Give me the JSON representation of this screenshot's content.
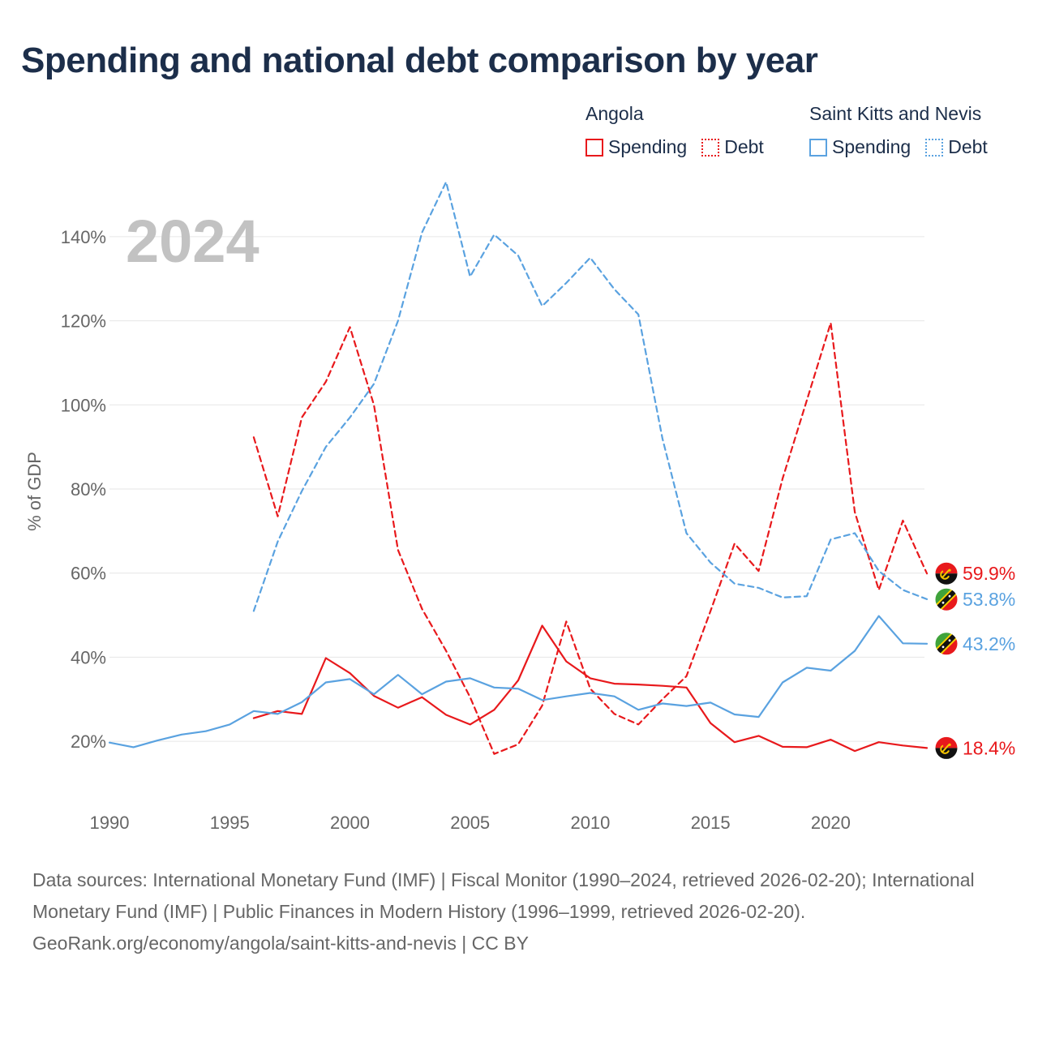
{
  "title": "Spending and national debt comparison by year",
  "legend": {
    "groups": [
      {
        "country": "Angola",
        "color": "#e8191c",
        "spending_label": "Spending",
        "debt_label": "Debt"
      },
      {
        "country": "Saint Kitts and Nevis",
        "color": "#5aa2e0",
        "spending_label": "Spending",
        "debt_label": "Debt"
      }
    ]
  },
  "footer": {
    "line1": "Data sources: International Monetary Fund (IMF) | Fiscal Monitor (1990–2024, retrieved 2026-02-20); International Monetary Fund (IMF) | Public Finances in Modern History (1996–1999, retrieved 2026-02-20).",
    "line2": "GeoRank.org/economy/angola/saint-kitts-and-nevis | CC BY"
  },
  "chart_data": {
    "type": "line",
    "year_label": "2024",
    "ylabel": "% of GDP",
    "xlim": [
      1990,
      2024
    ],
    "ylim": [
      10,
      150
    ],
    "x_ticks": [
      "1990",
      "1995",
      "2000",
      "2005",
      "2010",
      "2015",
      "2020"
    ],
    "y_ticks": [
      "20%",
      "40%",
      "60%",
      "80%",
      "100%",
      "120%",
      "140%"
    ],
    "grid": true,
    "series": [
      {
        "name": "Angola Spending",
        "color": "#e8191c",
        "dashed": false,
        "flag": "angola",
        "end_label": "18.4%",
        "points": [
          [
            1996,
            25.5
          ],
          [
            1997,
            27.2
          ],
          [
            1998,
            26.5
          ],
          [
            1999,
            39.8
          ],
          [
            2000,
            36.2
          ],
          [
            2001,
            30.8
          ],
          [
            2002,
            28.0
          ],
          [
            2003,
            30.5
          ],
          [
            2004,
            26.3
          ],
          [
            2005,
            24.0
          ],
          [
            2006,
            27.5
          ],
          [
            2007,
            34.5
          ],
          [
            2008,
            47.5
          ],
          [
            2009,
            39.0
          ],
          [
            2010,
            35.0
          ],
          [
            2011,
            33.7
          ],
          [
            2012,
            33.5
          ],
          [
            2013,
            33.2
          ],
          [
            2014,
            32.8
          ],
          [
            2015,
            24.3
          ],
          [
            2016,
            19.8
          ],
          [
            2017,
            21.3
          ],
          [
            2018,
            18.7
          ],
          [
            2019,
            18.6
          ],
          [
            2020,
            20.4
          ],
          [
            2021,
            17.7
          ],
          [
            2022,
            19.8
          ],
          [
            2023,
            19.0
          ],
          [
            2024,
            18.4
          ]
        ]
      },
      {
        "name": "Angola Debt",
        "color": "#e8191c",
        "dashed": true,
        "flag": "angola",
        "end_label": "59.9%",
        "points": [
          [
            1996,
            92.3
          ],
          [
            1997,
            73.5
          ],
          [
            1998,
            97.0
          ],
          [
            1999,
            105.5
          ],
          [
            2000,
            118.5
          ],
          [
            2001,
            100.0
          ],
          [
            2002,
            65.5
          ],
          [
            2003,
            51.5
          ],
          [
            2004,
            41.5
          ],
          [
            2005,
            30.5
          ],
          [
            2006,
            17.0
          ],
          [
            2007,
            19.3
          ],
          [
            2008,
            28.5
          ],
          [
            2009,
            48.5
          ],
          [
            2010,
            32.5
          ],
          [
            2011,
            26.5
          ],
          [
            2012,
            24.0
          ],
          [
            2013,
            30.0
          ],
          [
            2014,
            35.5
          ],
          [
            2015,
            51.0
          ],
          [
            2016,
            67.0
          ],
          [
            2017,
            60.5
          ],
          [
            2018,
            82.5
          ],
          [
            2019,
            101.0
          ],
          [
            2020,
            119.5
          ],
          [
            2021,
            74.5
          ],
          [
            2022,
            56.0
          ],
          [
            2023,
            72.5
          ],
          [
            2024,
            59.9
          ]
        ]
      },
      {
        "name": "Saint Kitts and Nevis Spending",
        "color": "#5aa2e0",
        "dashed": false,
        "flag": "skn",
        "end_label": "43.2%",
        "points": [
          [
            1990,
            19.7
          ],
          [
            1991,
            18.6
          ],
          [
            1992,
            20.2
          ],
          [
            1993,
            21.6
          ],
          [
            1994,
            22.4
          ],
          [
            1995,
            24.0
          ],
          [
            1996,
            27.2
          ],
          [
            1997,
            26.5
          ],
          [
            1998,
            29.3
          ],
          [
            1999,
            34.0
          ],
          [
            2000,
            34.8
          ],
          [
            2001,
            31.2
          ],
          [
            2002,
            35.8
          ],
          [
            2003,
            31.2
          ],
          [
            2004,
            34.2
          ],
          [
            2005,
            35.0
          ],
          [
            2006,
            32.8
          ],
          [
            2007,
            32.5
          ],
          [
            2008,
            29.8
          ],
          [
            2009,
            30.7
          ],
          [
            2010,
            31.5
          ],
          [
            2011,
            30.7
          ],
          [
            2012,
            27.5
          ],
          [
            2013,
            29.0
          ],
          [
            2014,
            28.4
          ],
          [
            2015,
            29.2
          ],
          [
            2016,
            26.4
          ],
          [
            2017,
            25.8
          ],
          [
            2018,
            34.0
          ],
          [
            2019,
            37.5
          ],
          [
            2020,
            36.8
          ],
          [
            2021,
            41.5
          ],
          [
            2022,
            49.8
          ],
          [
            2023,
            43.3
          ],
          [
            2024,
            43.2
          ]
        ]
      },
      {
        "name": "Saint Kitts and Nevis Debt",
        "color": "#5aa2e0",
        "dashed": true,
        "flag": "skn",
        "end_label": "53.8%",
        "points": [
          [
            1996,
            51.0
          ],
          [
            1997,
            67.5
          ],
          [
            1998,
            79.5
          ],
          [
            1999,
            90.0
          ],
          [
            2000,
            97.0
          ],
          [
            2001,
            105.0
          ],
          [
            2002,
            120.0
          ],
          [
            2003,
            141.0
          ],
          [
            2004,
            153.0
          ],
          [
            2005,
            130.5
          ],
          [
            2006,
            140.5
          ],
          [
            2007,
            135.5
          ],
          [
            2008,
            123.5
          ],
          [
            2009,
            129.0
          ],
          [
            2010,
            135.0
          ],
          [
            2011,
            127.5
          ],
          [
            2012,
            121.5
          ],
          [
            2013,
            92.0
          ],
          [
            2014,
            69.5
          ],
          [
            2015,
            62.5
          ],
          [
            2016,
            57.5
          ],
          [
            2017,
            56.5
          ],
          [
            2018,
            54.2
          ],
          [
            2019,
            54.5
          ],
          [
            2020,
            68.0
          ],
          [
            2021,
            69.5
          ],
          [
            2022,
            60.5
          ],
          [
            2023,
            56.0
          ],
          [
            2024,
            53.8
          ]
        ]
      }
    ]
  }
}
